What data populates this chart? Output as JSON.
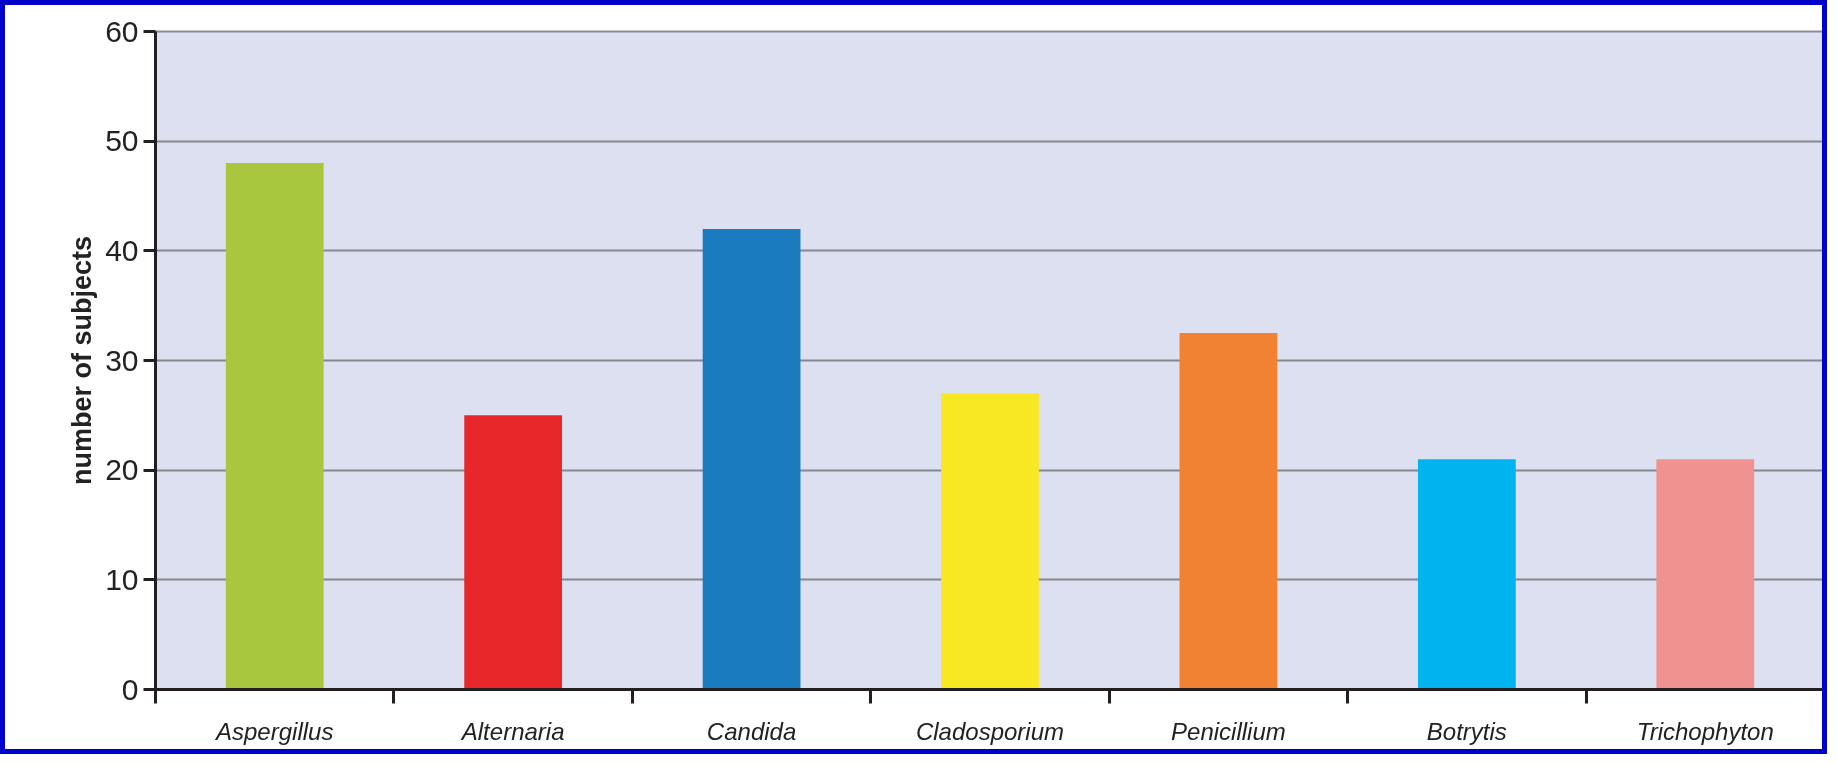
{
  "chart_data": {
    "type": "bar",
    "ylabel": "number of subjects",
    "categories": [
      "Aspergillus",
      "Alternaria",
      "Candida",
      "Cladosporium",
      "Penicillium",
      "Botrytis",
      "Trichophyton"
    ],
    "values": [
      48,
      25,
      42,
      27,
      32.5,
      21,
      21
    ],
    "colors": [
      "#a8c63e",
      "#e8272b",
      "#1a7bbf",
      "#f8e823",
      "#f08232",
      "#00b5ef",
      "#ef9290"
    ],
    "ylim": [
      0,
      60
    ],
    "yticks": [
      0,
      10,
      20,
      30,
      40,
      50,
      60
    ],
    "grid": "y"
  }
}
